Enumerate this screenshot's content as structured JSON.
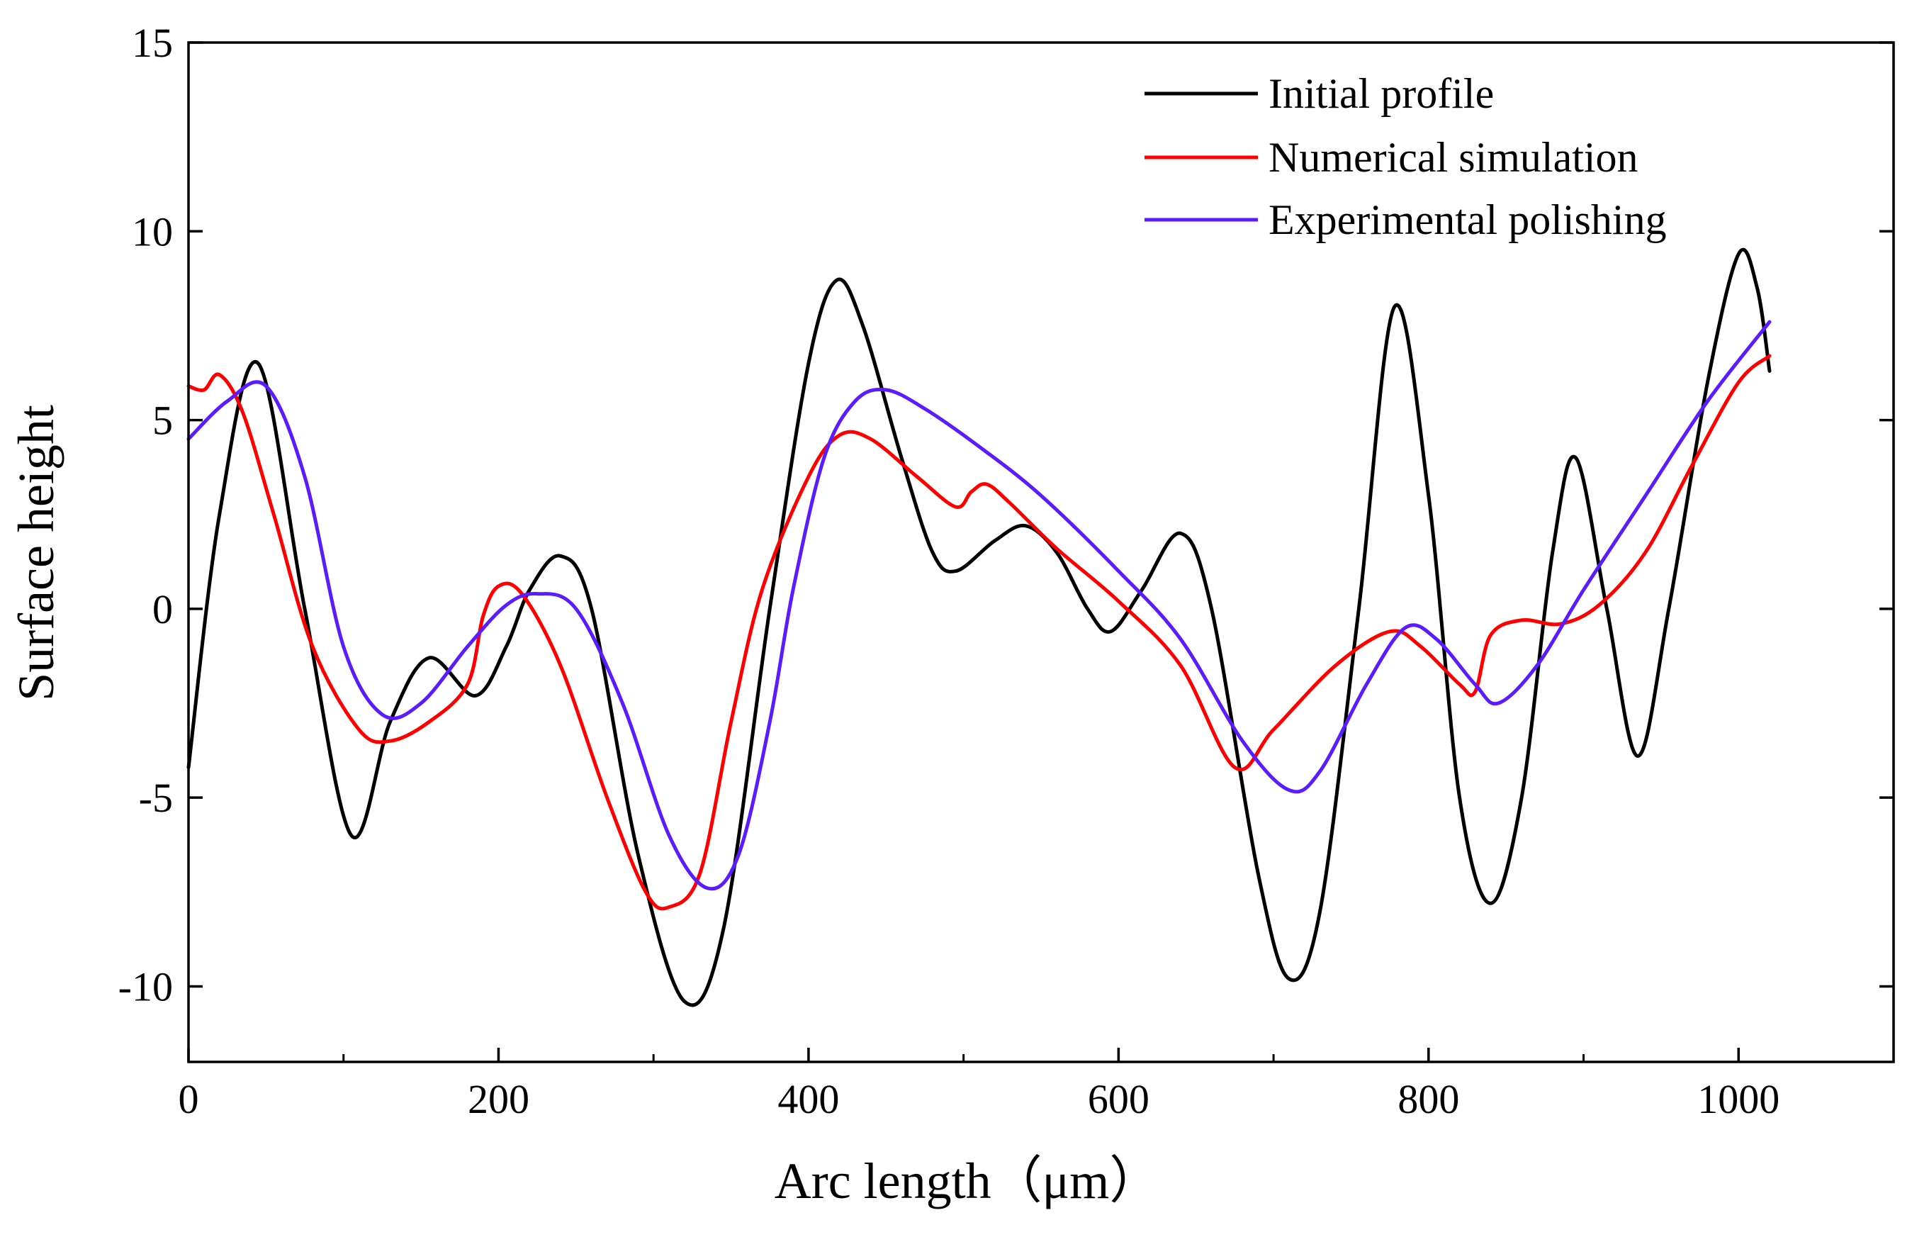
{
  "chart_data": {
    "type": "line",
    "title": "",
    "xlabel": "Arc length（μm）",
    "ylabel": "Surface height",
    "xlim": [
      0,
      1100
    ],
    "ylim": [
      -12,
      15
    ],
    "xticks": [
      0,
      200,
      400,
      600,
      800,
      1000
    ],
    "yticks": [
      -10,
      -5,
      0,
      5,
      10,
      15
    ],
    "xtick_labels": [
      "0",
      "200",
      "400",
      "600",
      "800",
      "1000"
    ],
    "ytick_labels": [
      "-10",
      "-5",
      "0",
      "5",
      "10",
      "15"
    ],
    "grid": false,
    "legend": "top-right",
    "series": [
      {
        "name": "Initial profile",
        "color": "#000000",
        "points": [
          [
            0,
            -4.2
          ],
          [
            20,
            2.5
          ],
          [
            45,
            6.5
          ],
          [
            75,
            0
          ],
          [
            105,
            -6.0
          ],
          [
            130,
            -3.0
          ],
          [
            155,
            -1.3
          ],
          [
            185,
            -2.3
          ],
          [
            205,
            -1.0
          ],
          [
            220,
            0.5
          ],
          [
            240,
            1.4
          ],
          [
            260,
            0
          ],
          [
            290,
            -6.5
          ],
          [
            320,
            -10.4
          ],
          [
            345,
            -8.5
          ],
          [
            375,
            0
          ],
          [
            400,
            6.5
          ],
          [
            418,
            8.7
          ],
          [
            435,
            7.5
          ],
          [
            460,
            4.0
          ],
          [
            480,
            1.5
          ],
          [
            495,
            1.0
          ],
          [
            520,
            1.8
          ],
          [
            540,
            2.2
          ],
          [
            560,
            1.5
          ],
          [
            580,
            0
          ],
          [
            595,
            -0.6
          ],
          [
            615,
            0.5
          ],
          [
            640,
            2.0
          ],
          [
            660,
            0
          ],
          [
            690,
            -7.0
          ],
          [
            710,
            -9.8
          ],
          [
            730,
            -8.0
          ],
          [
            755,
            0
          ],
          [
            778,
            8.0
          ],
          [
            800,
            3.0
          ],
          [
            820,
            -5.0
          ],
          [
            840,
            -7.8
          ],
          [
            860,
            -5.0
          ],
          [
            880,
            1.5
          ],
          [
            895,
            4.0
          ],
          [
            915,
            0
          ],
          [
            935,
            -3.9
          ],
          [
            955,
            0
          ],
          [
            980,
            6.0
          ],
          [
            1000,
            9.4
          ],
          [
            1012,
            8.5
          ],
          [
            1020,
            6.3
          ]
        ]
      },
      {
        "name": "Numerical simulation",
        "color": "#ff0000",
        "points": [
          [
            0,
            5.9
          ],
          [
            10,
            5.8
          ],
          [
            20,
            6.2
          ],
          [
            35,
            5.2
          ],
          [
            55,
            2.5
          ],
          [
            80,
            -1.0
          ],
          [
            110,
            -3.2
          ],
          [
            130,
            -3.5
          ],
          [
            155,
            -3.0
          ],
          [
            180,
            -2.0
          ],
          [
            190,
            -0.2
          ],
          [
            200,
            0.6
          ],
          [
            215,
            0.4
          ],
          [
            240,
            -1.5
          ],
          [
            270,
            -5.0
          ],
          [
            295,
            -7.5
          ],
          [
            310,
            -7.9
          ],
          [
            330,
            -7.0
          ],
          [
            350,
            -3.0
          ],
          [
            370,
            0.5
          ],
          [
            400,
            3.5
          ],
          [
            420,
            4.6
          ],
          [
            440,
            4.5
          ],
          [
            470,
            3.5
          ],
          [
            495,
            2.7
          ],
          [
            505,
            3.1
          ],
          [
            515,
            3.3
          ],
          [
            530,
            2.8
          ],
          [
            560,
            1.6
          ],
          [
            600,
            0.2
          ],
          [
            640,
            -1.5
          ],
          [
            675,
            -4.2
          ],
          [
            700,
            -3.2
          ],
          [
            740,
            -1.5
          ],
          [
            775,
            -0.6
          ],
          [
            795,
            -1.0
          ],
          [
            820,
            -2.0
          ],
          [
            830,
            -2.2
          ],
          [
            840,
            -0.7
          ],
          [
            860,
            -0.3
          ],
          [
            885,
            -0.4
          ],
          [
            910,
            0.1
          ],
          [
            940,
            1.5
          ],
          [
            970,
            3.8
          ],
          [
            1000,
            6.0
          ],
          [
            1020,
            6.7
          ]
        ]
      },
      {
        "name": "Experimental polishing",
        "color": "#5a1cff",
        "points": [
          [
            0,
            4.5
          ],
          [
            25,
            5.5
          ],
          [
            50,
            5.9
          ],
          [
            75,
            3.5
          ],
          [
            100,
            -1.0
          ],
          [
            125,
            -2.8
          ],
          [
            150,
            -2.5
          ],
          [
            180,
            -1.0
          ],
          [
            205,
            0.1
          ],
          [
            225,
            0.4
          ],
          [
            250,
            0
          ],
          [
            280,
            -2.5
          ],
          [
            310,
            -6.0
          ],
          [
            335,
            -7.4
          ],
          [
            355,
            -6.5
          ],
          [
            375,
            -3.0
          ],
          [
            390,
            0.5
          ],
          [
            410,
            4.0
          ],
          [
            430,
            5.5
          ],
          [
            450,
            5.8
          ],
          [
            475,
            5.3
          ],
          [
            510,
            4.3
          ],
          [
            550,
            3.0
          ],
          [
            600,
            1.0
          ],
          [
            640,
            -0.8
          ],
          [
            680,
            -3.5
          ],
          [
            710,
            -4.8
          ],
          [
            730,
            -4.3
          ],
          [
            760,
            -2.0
          ],
          [
            785,
            -0.5
          ],
          [
            805,
            -0.8
          ],
          [
            830,
            -2.0
          ],
          [
            845,
            -2.5
          ],
          [
            870,
            -1.5
          ],
          [
            900,
            0.5
          ],
          [
            940,
            3.0
          ],
          [
            980,
            5.5
          ],
          [
            1020,
            7.6
          ]
        ]
      }
    ]
  }
}
